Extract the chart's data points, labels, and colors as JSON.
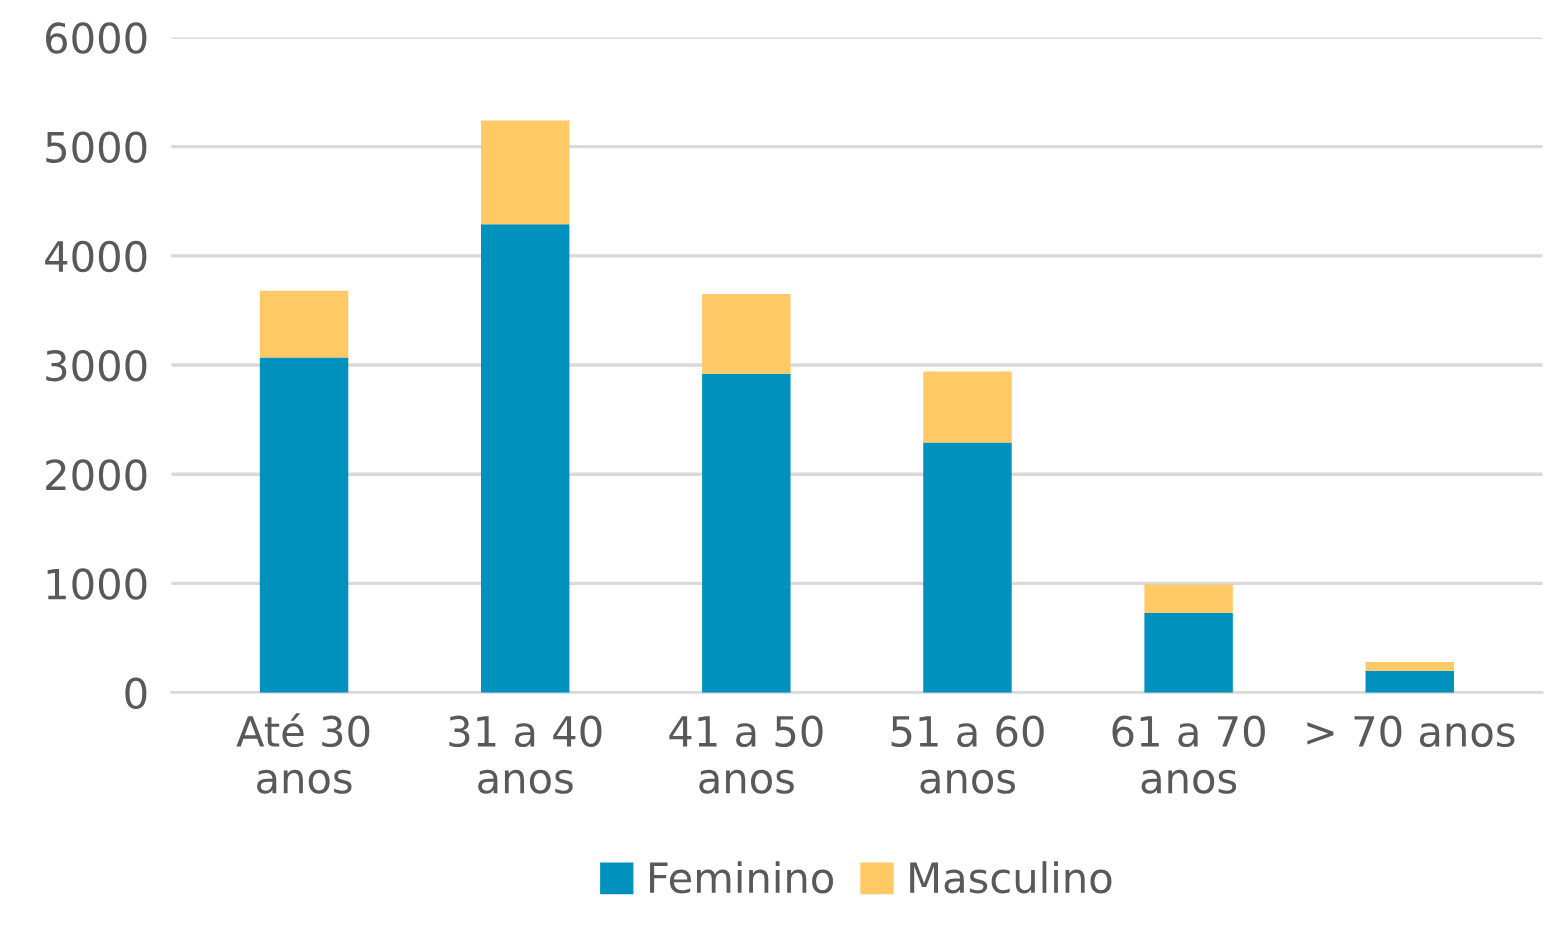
{
  "chart_data": {
    "type": "bar",
    "stacked": true,
    "categories": [
      "Até 30\nanos",
      "31 a 40\nanos",
      "41 a 50\nanos",
      "51 a 60\nanos",
      "61 a 70\nanos",
      "> 70 anos"
    ],
    "series": [
      {
        "name": "Feminino",
        "color": "#0092bc",
        "values": [
          3070,
          4290,
          2920,
          2290,
          730,
          200
        ]
      },
      {
        "name": "Masculino",
        "color": "#ffca66",
        "values": [
          610,
          950,
          730,
          650,
          260,
          80
        ]
      }
    ],
    "ylim": [
      0,
      6000
    ],
    "yticks": [
      0,
      1000,
      2000,
      3000,
      4000,
      5000,
      6000
    ],
    "grid": "y",
    "legend": "bottom"
  }
}
